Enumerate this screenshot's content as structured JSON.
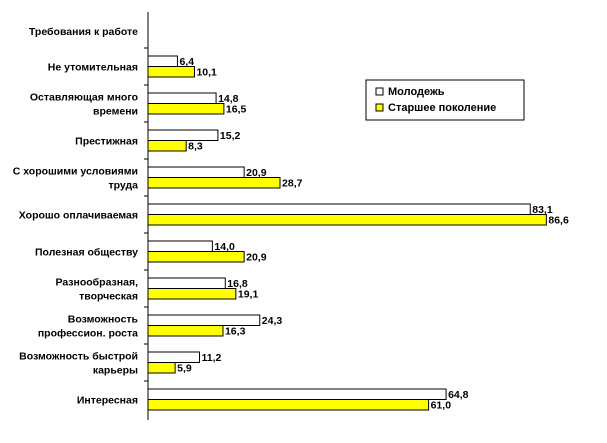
{
  "chart_data": {
    "type": "bar",
    "orientation": "horizontal",
    "header_label": "Требования к работе",
    "categories": [
      [
        "Не утомительная"
      ],
      [
        "Оставляющая много",
        "времени"
      ],
      [
        "Престижная"
      ],
      [
        "С хорошими условиями",
        "труда"
      ],
      [
        "Хорошо оплачиваемая"
      ],
      [
        "Полезная обществу"
      ],
      [
        "Разнообразная,",
        "творческая"
      ],
      [
        "Возможность",
        "профессион. роста"
      ],
      [
        "Возможность быстрой",
        "карьеры"
      ],
      [
        "Интересная"
      ]
    ],
    "series": [
      {
        "name": "Молодежь",
        "color": "#ffffff",
        "values": [
          6.4,
          14.8,
          15.2,
          20.9,
          83.1,
          14.0,
          16.8,
          24.3,
          11.2,
          64.8
        ],
        "labels": [
          "6,4",
          "14,8",
          "15,2",
          "20,9",
          "83,1",
          "14,0",
          "16,8",
          "24,3",
          "11,2",
          "64,8"
        ]
      },
      {
        "name": "Старшее поколение",
        "color": "#ffff00",
        "values": [
          10.1,
          16.5,
          8.3,
          28.7,
          86.6,
          20.9,
          19.1,
          16.3,
          5.9,
          61.0
        ],
        "labels": [
          "10,1",
          "16,5",
          "8,3",
          "28,7",
          "86,6",
          "20,9",
          "19,1",
          "16,3",
          "5,9",
          "61,0"
        ]
      }
    ],
    "xlim": [
      0,
      100
    ],
    "grid": false,
    "legend_position": "top-right"
  }
}
